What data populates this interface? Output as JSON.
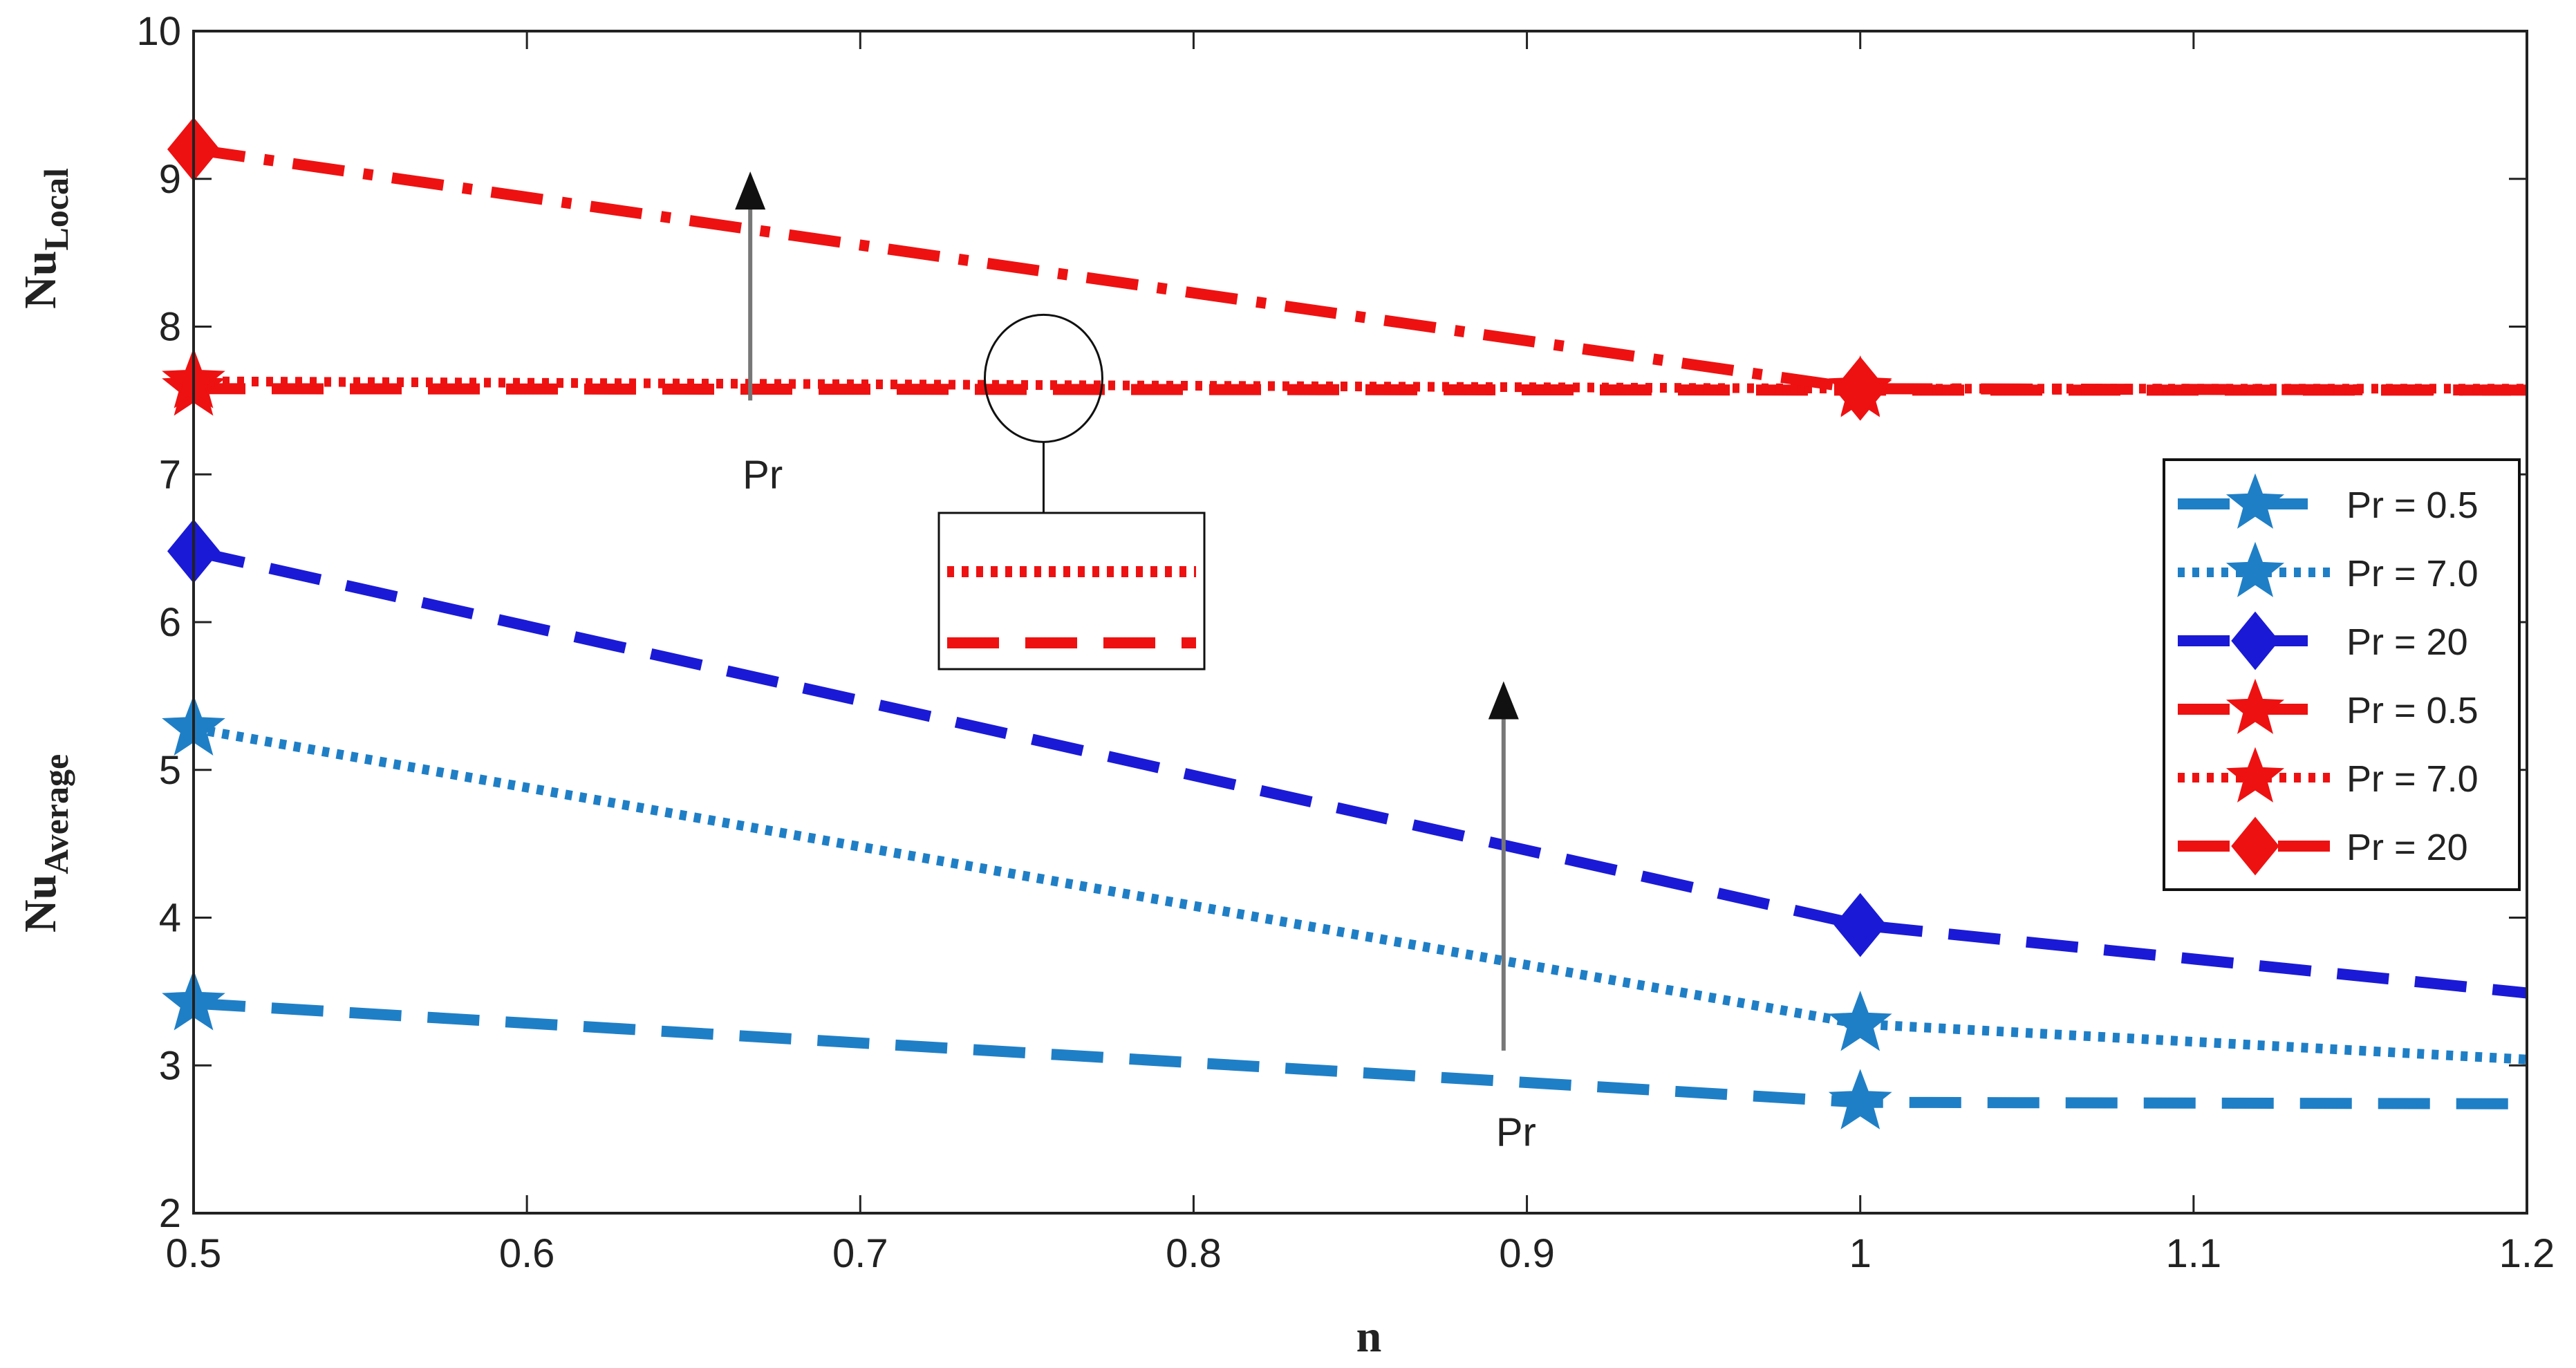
{
  "chart_data": {
    "type": "line",
    "title": "",
    "xlabel": "n",
    "ylabel_top": {
      "main": "Nu",
      "sub": "Local"
    },
    "ylabel_bottom": {
      "main": "Nu",
      "sub": "Average"
    },
    "xlim": [
      0.5,
      1.2
    ],
    "ylim": [
      2,
      10
    ],
    "xticks": [
      0.5,
      0.6,
      0.7,
      0.8,
      0.9,
      1.0,
      1.1,
      1.2
    ],
    "xtick_labels": [
      "0.5",
      "0.6",
      "0.7",
      "0.8",
      "0.9",
      "1",
      "1.1",
      "1.2"
    ],
    "yticks": [
      2,
      3,
      4,
      5,
      6,
      7,
      8,
      9,
      10
    ],
    "ytick_labels": [
      "2",
      "3",
      "4",
      "5",
      "6",
      "7",
      "8",
      "9",
      "10"
    ],
    "grid": false,
    "legend_position": "right",
    "series": [
      {
        "name": "Pr = 0.5",
        "group": "average",
        "color": "#1f7fc6",
        "style": "dashed",
        "marker": "star",
        "x": [
          0.5,
          1.0,
          1.2
        ],
        "y": [
          3.42,
          2.75,
          2.74
        ]
      },
      {
        "name": "Pr = 7.0",
        "group": "average",
        "color": "#1f7fc6",
        "style": "dotted",
        "marker": "star",
        "x": [
          0.5,
          1.0,
          1.2
        ],
        "y": [
          5.28,
          3.28,
          3.04
        ]
      },
      {
        "name": "Pr = 20",
        "group": "average",
        "color": "#1a1ad6",
        "style": "dashed",
        "marker": "diamond",
        "x": [
          0.5,
          1.0,
          1.2
        ],
        "y": [
          6.48,
          3.95,
          3.49
        ]
      },
      {
        "name": "Pr = 0.5",
        "group": "local",
        "color": "#ee1111",
        "style": "dashed",
        "marker": "star",
        "x": [
          0.5,
          1.0,
          1.2
        ],
        "y": [
          7.58,
          7.57,
          7.57
        ]
      },
      {
        "name": "Pr = 7.0",
        "group": "local",
        "color": "#ee1111",
        "style": "dotted",
        "marker": "star",
        "x": [
          0.5,
          1.0,
          1.2
        ],
        "y": [
          7.63,
          7.58,
          7.58
        ]
      },
      {
        "name": "Pr =  20",
        "group": "local",
        "color": "#ee1111",
        "style": "dashdot",
        "marker": "diamond",
        "x": [
          0.5,
          1.0,
          1.2
        ],
        "y": [
          9.2,
          7.58,
          7.57
        ]
      }
    ],
    "annotations": [
      {
        "text": "Pr",
        "arrow_x": 0.667,
        "arrow_from": 7.5,
        "arrow_to": 9.05,
        "label_y": 7.0
      },
      {
        "text": "Pr",
        "arrow_x": 0.893,
        "arrow_from": 3.1,
        "arrow_to": 5.6,
        "label_y": 2.55
      }
    ],
    "inset": {
      "circle_x": 0.755,
      "circle_y": 7.65,
      "lines": [
        "dotted",
        "dashed"
      ],
      "color": "#ee1111"
    }
  }
}
